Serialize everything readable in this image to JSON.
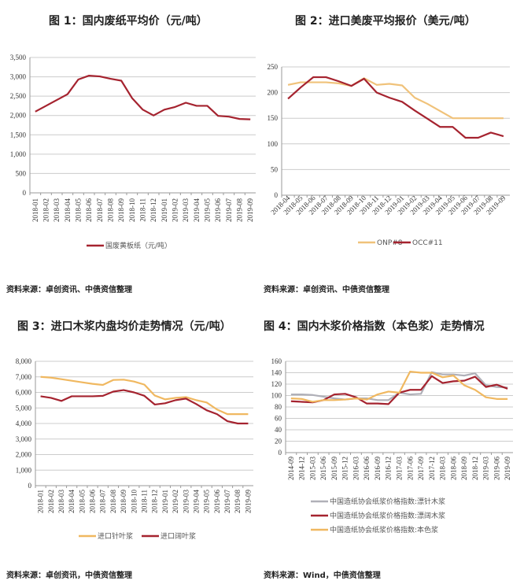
{
  "charts": [
    {
      "title": "图 1：国内废纸平均价（元/吨）",
      "source": "资料来源：卓创资讯、中债资信整理"
    },
    {
      "title": "图 2：进口美废平均报价（美元/吨）",
      "source": "资料来源：卓创资讯、中债资信整理"
    },
    {
      "title": "图 3：进口木浆内盘均价走势情况（元/吨）",
      "source": "资料来源：卓创资讯，中债资信整理"
    },
    {
      "title": "图 4：国内木浆价格指数（本色浆）走势情况",
      "source": "资料来源：Wind，中债资信整理"
    }
  ],
  "chart_data": [
    {
      "type": "line",
      "title": "图 1：国内废纸平均价（元/吨）",
      "ylim": [
        0,
        3500
      ],
      "yticks": [
        "0",
        "500",
        "1,000",
        "1,500",
        "2,000",
        "2,500",
        "3,000",
        "3,500"
      ],
      "categories": [
        "2018-01",
        "2018-02",
        "2018-03",
        "2018-04",
        "2018-05",
        "2018-06",
        "2018-07",
        "2018-08",
        "2018-09",
        "2018-10",
        "2018-11",
        "2018-12",
        "2019-01",
        "2019-02",
        "2019-03",
        "2019-04",
        "2019-05",
        "2019-06",
        "2019-07",
        "2019-08",
        "2019-09"
      ],
      "series": [
        {
          "name": "国废黄板纸（元/吨）",
          "color": "#a5232f",
          "values": [
            2100,
            2250,
            2400,
            2550,
            2930,
            3030,
            3010,
            2950,
            2900,
            2450,
            2150,
            2000,
            2150,
            2220,
            2330,
            2250,
            2250,
            1990,
            1970,
            1910,
            1900
          ]
        }
      ],
      "legend": "bottom"
    },
    {
      "type": "line",
      "title": "图 2：进口美废平均报价（美元/吨）",
      "ylim": [
        0,
        250
      ],
      "yticks": [
        "0",
        "50",
        "100",
        "150",
        "200",
        "250"
      ],
      "categories": [
        "2018-04",
        "2018-05",
        "2018-06",
        "2018-07",
        "2018-08",
        "2018-09",
        "2018-10",
        "2018-11",
        "2018-12",
        "2019-01",
        "2019-02",
        "2019-03",
        "2019-04",
        "2019-05",
        "2019-06",
        "2019-07",
        "2019-08",
        "2019-09"
      ],
      "series": [
        {
          "name": "ONP#8",
          "color": "#f0c27a",
          "values": [
            215,
            220,
            220,
            220,
            218,
            213,
            228,
            215,
            217,
            214,
            190,
            178,
            164,
            150,
            150,
            150,
            150,
            150
          ]
        },
        {
          "name": "OCC#11",
          "color": "#a5232f",
          "values": [
            188,
            210,
            230,
            230,
            222,
            213,
            227,
            200,
            190,
            182,
            165,
            149,
            133,
            133,
            112,
            112,
            122,
            115
          ]
        }
      ],
      "legend": "bottom"
    },
    {
      "type": "line",
      "title": "图 3：进口木浆内盘均价走势情况（元/吨）",
      "ylim": [
        0,
        8000
      ],
      "yticks": [
        "0",
        "1,000",
        "2,000",
        "3,000",
        "4,000",
        "5,000",
        "6,000",
        "7,000",
        "8,000"
      ],
      "categories": [
        "2018-01",
        "2018-02",
        "2018-03",
        "2018-04",
        "2018-05",
        "2018-06",
        "2018-07",
        "2018-08",
        "2018-09",
        "2018-10",
        "2018-11",
        "2018-12",
        "2019-01",
        "2019-02",
        "2019-03",
        "2019-04",
        "2019-05",
        "2019-06",
        "2019-07",
        "2019-08",
        "2019-09"
      ],
      "series": [
        {
          "name": "进口针叶浆",
          "color": "#f0b860",
          "values": [
            7000,
            6950,
            6850,
            6750,
            6650,
            6550,
            6480,
            6800,
            6820,
            6700,
            6500,
            5800,
            5550,
            5650,
            5700,
            5500,
            5350,
            4900,
            4600,
            4600,
            4600
          ]
        },
        {
          "name": "进口阔叶浆",
          "color": "#a5232f",
          "values": [
            5750,
            5650,
            5450,
            5750,
            5750,
            5750,
            5780,
            6050,
            6150,
            6000,
            5780,
            5220,
            5300,
            5500,
            5600,
            5250,
            4850,
            4600,
            4150,
            4000,
            4000
          ]
        }
      ],
      "legend": "bottom"
    },
    {
      "type": "line",
      "title": "图 4：国内木浆价格指数（本色浆）走势情况",
      "ylim": [
        0,
        160
      ],
      "yticks": [
        "0",
        "20",
        "40",
        "60",
        "80",
        "100",
        "120",
        "140",
        "160"
      ],
      "categories": [
        "2014-09",
        "2014-12",
        "2015-03",
        "2015-06",
        "2015-09",
        "2015-12",
        "2016-03",
        "2016-06",
        "2016-09",
        "2016-12",
        "2017-03",
        "2017-06",
        "2017-09",
        "2017-12",
        "2018-03",
        "2018-06",
        "2018-09",
        "2018-12",
        "2019-03",
        "2019-06",
        "2019-09"
      ],
      "series": [
        {
          "name": "中国造纸协会纸浆价格指数:漂针木浆",
          "color": "#b0b0b8",
          "values": [
            102,
            102,
            101,
            98,
            95,
            93,
            95,
            95,
            92,
            92,
            105,
            102,
            103,
            141,
            137,
            137,
            135,
            139,
            118,
            115,
            114
          ]
        },
        {
          "name": "中国造纸协会纸浆价格指数:漂阔木浆",
          "color": "#a5232f",
          "values": [
            90,
            89,
            88,
            92,
            102,
            103,
            97,
            86,
            86,
            85,
            105,
            110,
            110,
            134,
            122,
            125,
            126,
            133,
            115,
            119,
            112
          ]
        },
        {
          "name": "中国造纸协会纸浆价格指数:本色浆",
          "color": "#f0b860",
          "values": [
            95,
            94,
            89,
            92,
            92,
            93,
            95,
            93,
            102,
            107,
            105,
            142,
            140,
            140,
            132,
            135,
            118,
            110,
            97,
            94,
            94
          ]
        }
      ],
      "legend": "bottom-stacked"
    }
  ]
}
